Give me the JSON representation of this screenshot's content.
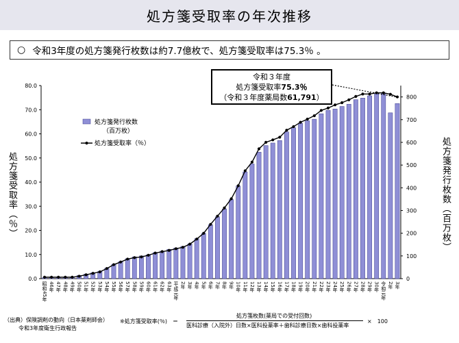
{
  "header": {
    "title": "処方箋受取率の年次推移"
  },
  "summary": {
    "bullet": "○",
    "text": "令和3年度の処方箋発行枚数は約7.7億枚で、処方箋受取率は75.3％ 。"
  },
  "callout": {
    "line1": "令和３年度",
    "line2_prefix": "処方箋受取率",
    "line2_value": "75.3％",
    "line3_prefix": "（令和３年度薬局数",
    "line3_value": "61,791",
    "line3_suffix": "）"
  },
  "footnotes": {
    "source_line1": "（出典）保険調剤の動向（日本薬剤師会）",
    "source_line2": "令和3年度衛生行政報告",
    "formula_label": "※処方箋受取率(％)　＝",
    "formula_numerator": "処方箋枚数(薬局での受付回数)",
    "formula_denominator": "医科診療（入院外）日数×医科投薬率＋歯科診療日数×歯科投薬率",
    "formula_times": "×　100"
  },
  "colors": {
    "bar_fill": "#8f8fd6",
    "bar_stroke": "#3c3c8c",
    "line": "#000000"
  },
  "chart_data": {
    "type": "bar",
    "secondary_type": "line",
    "categories": [
      "昭和45年",
      "46年",
      "47年",
      "48年",
      "49年",
      "50年",
      "51年",
      "52年",
      "53年",
      "54年",
      "55年",
      "56年",
      "57年",
      "58年",
      "59年",
      "60年",
      "61年",
      "62年",
      "63年",
      "平成元年",
      "2年",
      "3年",
      "4年",
      "5年",
      "6年",
      "7年",
      "8年",
      "9年",
      "10年",
      "11年",
      "12年",
      "13年",
      "14年",
      "15年",
      "16年",
      "17年",
      "18年",
      "19年",
      "20年",
      "21年",
      "22年",
      "23年",
      "24年",
      "25年",
      "26年",
      "27年",
      "28年",
      "29年",
      "30年",
      "令和元年",
      "2年",
      "3年"
    ],
    "ylabel_left": "処方箋受取率（％）",
    "ylabel_right": "処方箋発行枚数（百万枚）",
    "ylim_left": [
      0,
      80
    ],
    "ylim_right": [
      0,
      850
    ],
    "yticks_left": [
      "0.0",
      "10.0",
      "20.0",
      "30.0",
      "40.0",
      "50.0",
      "60.0",
      "70.0",
      "80.0"
    ],
    "yticks_right": [
      "0",
      "100",
      "200",
      "300",
      "400",
      "500",
      "600",
      "700",
      "800"
    ],
    "legend_position": "top-left",
    "series": [
      {
        "name": "処方箋発行枚数",
        "name_line2": "（百万枚）",
        "type": "bar",
        "axis": "right",
        "values": [
          5,
          5,
          6,
          6,
          8,
          14,
          20,
          26,
          32,
          46,
          63,
          75,
          88,
          96,
          100,
          105,
          115,
          121,
          129,
          135,
          142,
          153,
          176,
          199,
          237,
          272,
          307,
          348,
          408,
          470,
          505,
          557,
          586,
          597,
          608,
          646,
          664,
          684,
          695,
          702,
          726,
          741,
          747,
          758,
          768,
          788,
          795,
          805,
          813,
          816,
          730,
          771
        ]
      },
      {
        "name": "処方箋受取率（％）",
        "type": "line",
        "axis": "left",
        "values": [
          0.6,
          0.6,
          0.6,
          0.6,
          0.6,
          1.0,
          1.6,
          2.2,
          2.8,
          4.2,
          5.8,
          6.9,
          8.1,
          8.7,
          9.0,
          9.7,
          10.6,
          11.2,
          11.7,
          12.4,
          13.0,
          14.3,
          16.4,
          18.8,
          22.5,
          25.9,
          29.3,
          33.1,
          38.5,
          44.7,
          48.3,
          53.8,
          56.5,
          57.5,
          58.6,
          61.5,
          63.0,
          64.8,
          66.1,
          67.5,
          69.7,
          70.7,
          72.0,
          72.9,
          74.1,
          75.5,
          76.5,
          76.5,
          77.0,
          77.0,
          76.4,
          75.3
        ]
      }
    ],
    "annotation": "令和３年度 処方箋受取率75.3％（令和３年度薬局数61,791）"
  }
}
